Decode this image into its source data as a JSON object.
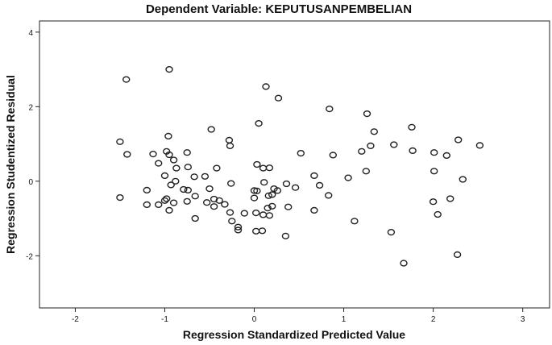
{
  "chart_data": {
    "type": "scatter",
    "title": "Dependent Variable: KEPUTUSANPEMBELIAN",
    "xlabel": "Regression Standardized Predicted Value",
    "ylabel": "Regression Studentized Residual",
    "xlim": [
      -2.4,
      3.3
    ],
    "ylim": [
      -3.4,
      4.3
    ],
    "x_ticks": [
      "-2",
      "-1",
      "0",
      "1",
      "2",
      "3"
    ],
    "y_ticks": [
      "4",
      "2",
      "0",
      "-2"
    ],
    "x_tick_values": [
      -2,
      -1,
      0,
      1,
      2,
      3
    ],
    "y_tick_values": [
      4,
      2,
      0,
      -2
    ],
    "grid": false,
    "legend": "none",
    "marker_color": "#222222",
    "points": [
      [
        -1.43,
        2.73
      ],
      [
        -0.95,
        3.0
      ],
      [
        0.13,
        2.54
      ],
      [
        0.27,
        2.23
      ],
      [
        0.84,
        1.94
      ],
      [
        1.26,
        1.81
      ],
      [
        0.05,
        1.55
      ],
      [
        -0.48,
        1.39
      ],
      [
        1.76,
        1.45
      ],
      [
        1.34,
        1.33
      ],
      [
        -0.96,
        1.21
      ],
      [
        -0.28,
        1.1
      ],
      [
        2.28,
        1.11
      ],
      [
        -1.5,
        1.06
      ],
      [
        -0.27,
        0.95
      ],
      [
        1.3,
        0.95
      ],
      [
        1.56,
        0.98
      ],
      [
        2.52,
        0.96
      ],
      [
        -1.42,
        0.72
      ],
      [
        -1.13,
        0.73
      ],
      [
        -0.98,
        0.8
      ],
      [
        -0.95,
        0.71
      ],
      [
        -0.75,
        0.77
      ],
      [
        0.52,
        0.75
      ],
      [
        0.88,
        0.7
      ],
      [
        1.2,
        0.8
      ],
      [
        1.77,
        0.82
      ],
      [
        2.01,
        0.77
      ],
      [
        2.15,
        0.69
      ],
      [
        -0.9,
        0.57
      ],
      [
        -1.07,
        0.48
      ],
      [
        -0.74,
        0.38
      ],
      [
        -0.87,
        0.35
      ],
      [
        -0.42,
        0.35
      ],
      [
        0.03,
        0.45
      ],
      [
        0.1,
        0.35
      ],
      [
        0.17,
        0.36
      ],
      [
        -1.0,
        0.15
      ],
      [
        -0.67,
        0.12
      ],
      [
        -0.55,
        0.13
      ],
      [
        0.67,
        0.15
      ],
      [
        1.05,
        0.09
      ],
      [
        1.25,
        0.27
      ],
      [
        2.01,
        0.27
      ],
      [
        2.33,
        0.05
      ],
      [
        -0.88,
        0.0
      ],
      [
        -0.93,
        -0.1
      ],
      [
        -0.26,
        -0.06
      ],
      [
        0.11,
        -0.03
      ],
      [
        0.36,
        -0.07
      ],
      [
        0.73,
        -0.11
      ],
      [
        -1.2,
        -0.24
      ],
      [
        -0.79,
        -0.22
      ],
      [
        -0.74,
        -0.24
      ],
      [
        -0.5,
        -0.2
      ],
      [
        0.0,
        -0.25
      ],
      [
        0.22,
        -0.2
      ],
      [
        0.26,
        -0.25
      ],
      [
        0.46,
        -0.17
      ],
      [
        0.03,
        -0.26
      ],
      [
        -1.5,
        -0.44
      ],
      [
        -0.98,
        -0.47
      ],
      [
        -1.0,
        -0.52
      ],
      [
        -0.9,
        -0.58
      ],
      [
        -0.66,
        -0.4
      ],
      [
        -0.45,
        -0.48
      ],
      [
        -0.39,
        -0.52
      ],
      [
        0.0,
        -0.45
      ],
      [
        0.16,
        -0.39
      ],
      [
        0.2,
        -0.36
      ],
      [
        0.83,
        -0.38
      ],
      [
        2.0,
        -0.55
      ],
      [
        2.19,
        -0.47
      ],
      [
        -1.2,
        -0.63
      ],
      [
        -1.07,
        -0.63
      ],
      [
        -0.95,
        -0.78
      ],
      [
        -0.75,
        -0.54
      ],
      [
        -0.53,
        -0.57
      ],
      [
        -0.45,
        -0.68
      ],
      [
        -0.33,
        -0.62
      ],
      [
        -0.27,
        -0.84
      ],
      [
        0.15,
        -0.72
      ],
      [
        0.2,
        -0.67
      ],
      [
        0.38,
        -0.69
      ],
      [
        0.1,
        -0.9
      ],
      [
        0.17,
        -0.92
      ],
      [
        0.67,
        -0.78
      ],
      [
        2.05,
        -0.89
      ],
      [
        -0.66,
        -1.0
      ],
      [
        -0.25,
        -1.07
      ],
      [
        -0.11,
        -0.86
      ],
      [
        0.02,
        -0.85
      ],
      [
        -0.18,
        -1.23
      ],
      [
        -0.18,
        -1.31
      ],
      [
        0.02,
        -1.34
      ],
      [
        0.09,
        -1.33
      ],
      [
        0.35,
        -1.47
      ],
      [
        1.12,
        -1.07
      ],
      [
        1.53,
        -1.37
      ],
      [
        1.67,
        -2.2
      ],
      [
        2.27,
        -1.97
      ]
    ]
  }
}
